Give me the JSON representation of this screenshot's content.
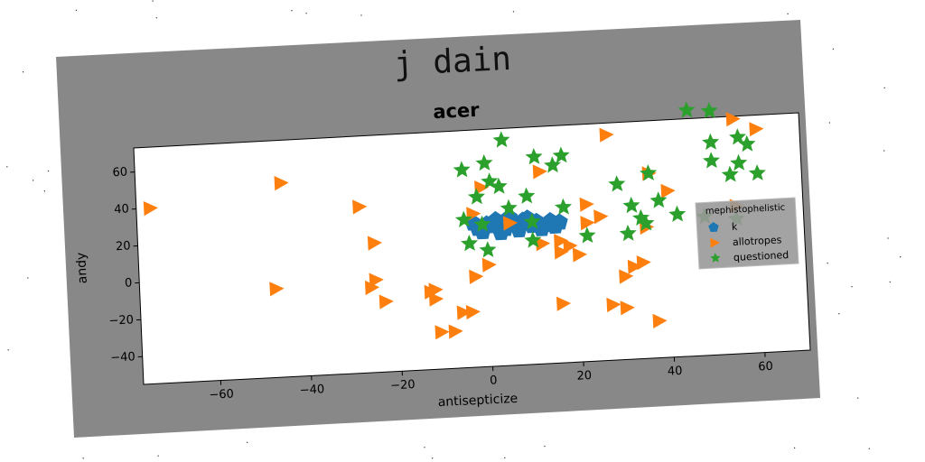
{
  "suptitle": "j dain",
  "chart_data": {
    "type": "scatter",
    "title": "acer",
    "xlabel": "antisepticize",
    "ylabel": "andy",
    "xlim": [
      -77,
      70
    ],
    "ylim": [
      -55,
      73
    ],
    "xticks": [
      -60,
      -40,
      -20,
      0,
      20,
      40,
      60
    ],
    "yticks": [
      -40,
      -20,
      0,
      20,
      40,
      60
    ],
    "grid": false,
    "legend": {
      "title": "mephistophelistic",
      "placement": "right"
    },
    "series": [
      {
        "name": "k",
        "marker": "pentagon",
        "color": "#1f77b4",
        "points": [
          [
            -2,
            20
          ],
          [
            0,
            22
          ],
          [
            2,
            24
          ],
          [
            4,
            19
          ],
          [
            6,
            21
          ],
          [
            8,
            23
          ],
          [
            10,
            20
          ],
          [
            12,
            18
          ],
          [
            14,
            22
          ],
          [
            -1,
            18
          ],
          [
            3,
            17
          ],
          [
            5,
            25
          ],
          [
            7,
            18
          ],
          [
            9,
            24
          ],
          [
            11,
            22
          ],
          [
            13,
            20
          ],
          [
            15,
            19
          ],
          [
            1,
            21
          ],
          [
            -3,
            23
          ],
          [
            16,
            21
          ]
        ]
      },
      {
        "name": "allotropes",
        "marker": "triangle-right",
        "color": "#ff7f0e",
        "points": [
          [
            -74,
            40
          ],
          [
            -45,
            50
          ],
          [
            -47,
            -7
          ],
          [
            -28,
            35
          ],
          [
            -25,
            15
          ],
          [
            -25,
            -5
          ],
          [
            -26,
            -9
          ],
          [
            -23,
            -17
          ],
          [
            -13,
            -13
          ],
          [
            -12,
            -12
          ],
          [
            -12,
            -17
          ],
          [
            -11,
            -35
          ],
          [
            -8,
            -35
          ],
          [
            -6,
            -25
          ],
          [
            -4,
            -25
          ],
          [
            -3,
            -6
          ],
          [
            0,
            0
          ],
          [
            -3,
            28
          ],
          [
            -1,
            42
          ],
          [
            12,
            49
          ],
          [
            22,
            20
          ],
          [
            22,
            30
          ],
          [
            27,
            67
          ],
          [
            30,
            -10
          ],
          [
            32,
            -5
          ],
          [
            34,
            -3
          ],
          [
            36,
            45
          ],
          [
            37,
            -35
          ],
          [
            40,
            35
          ],
          [
            30,
            -27
          ],
          [
            27,
            -25
          ],
          [
            20,
            3
          ],
          [
            16,
            5
          ],
          [
            18,
            8
          ],
          [
            16,
            11
          ],
          [
            12,
            10
          ],
          [
            16,
            -23
          ],
          [
            55,
            72
          ],
          [
            60,
            66
          ],
          [
            55,
            25
          ],
          [
            35,
            16
          ],
          [
            25,
            23
          ],
          [
            5,
            22
          ]
        ]
      },
      {
        "name": "questioned",
        "marker": "star",
        "color": "#2ca02c",
        "points": [
          [
            -5,
            52
          ],
          [
            0,
            55
          ],
          [
            4,
            67
          ],
          [
            1,
            45
          ],
          [
            3,
            42
          ],
          [
            -2,
            37
          ],
          [
            5,
            30
          ],
          [
            9,
            36
          ],
          [
            11,
            57
          ],
          [
            15,
            52
          ],
          [
            17,
            57
          ],
          [
            17,
            29
          ],
          [
            10,
            22
          ],
          [
            -1,
            22
          ],
          [
            -5,
            25
          ],
          [
            -4,
            12
          ],
          [
            0,
            8
          ],
          [
            10,
            12
          ],
          [
            22,
            13
          ],
          [
            31,
            13
          ],
          [
            34,
            21
          ],
          [
            35,
            18
          ],
          [
            38,
            30
          ],
          [
            29,
            40
          ],
          [
            32,
            28
          ],
          [
            36,
            45
          ],
          [
            45,
            78
          ],
          [
            50,
            77
          ],
          [
            50,
            60
          ],
          [
            50,
            50
          ],
          [
            54,
            42
          ],
          [
            56,
            48
          ],
          [
            58,
            58
          ],
          [
            60,
            42
          ],
          [
            56,
            62
          ],
          [
            42,
            22
          ],
          [
            48,
            20
          ],
          [
            55,
            18
          ]
        ]
      }
    ]
  }
}
